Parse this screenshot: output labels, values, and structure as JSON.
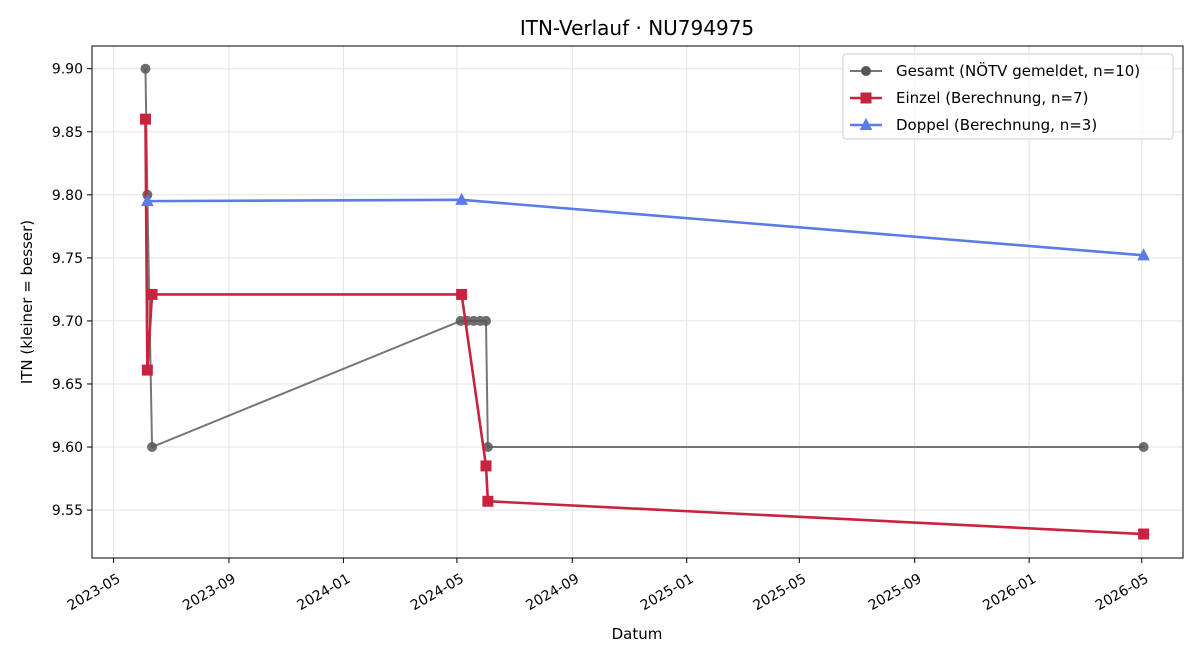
{
  "chart_data": {
    "type": "line",
    "title": "ITN-Verlauf · NU794975",
    "xlabel": "Datum",
    "ylabel": "ITN  (kleiner = besser)",
    "xlim": [
      "2023-04-08",
      "2026-06-14"
    ],
    "ylim": [
      9.512,
      9.918
    ],
    "grid": true,
    "legend_position": "top-right",
    "x_ticks": [
      "2023-05-01",
      "2023-09-01",
      "2024-01-01",
      "2024-05-01",
      "2024-09-01",
      "2025-01-01",
      "2025-05-01",
      "2025-09-01",
      "2026-01-01",
      "2026-05-01"
    ],
    "x_tick_labels": [
      "2023-05",
      "2023-09",
      "2024-01",
      "2024-05",
      "2024-09",
      "2025-01",
      "2025-05",
      "2025-09",
      "2026-01",
      "2026-05"
    ],
    "y_ticks": [
      9.55,
      9.6,
      9.65,
      9.7,
      9.75,
      9.8,
      9.85,
      9.9
    ],
    "y_tick_labels": [
      "9.55",
      "9.60",
      "9.65",
      "9.70",
      "9.75",
      "9.80",
      "9.85",
      "9.90"
    ],
    "series": [
      {
        "name": "Gesamt (NÖTV gemeldet, n=10)",
        "color": "#555555",
        "marker": "circle",
        "points": [
          {
            "x": "2023-06-04",
            "y": 9.9
          },
          {
            "x": "2023-06-06",
            "y": 9.8
          },
          {
            "x": "2023-06-11",
            "y": 9.6
          },
          {
            "x": "2024-05-05",
            "y": 9.7
          },
          {
            "x": "2024-05-12",
            "y": 9.7
          },
          {
            "x": "2024-05-19",
            "y": 9.7
          },
          {
            "x": "2024-05-26",
            "y": 9.7
          },
          {
            "x": "2024-06-01",
            "y": 9.7
          },
          {
            "x": "2024-06-03",
            "y": 9.6
          },
          {
            "x": "2026-05-03",
            "y": 9.6
          }
        ]
      },
      {
        "name": "Einzel (Berechnung, n=7)",
        "color": "#c8233f",
        "marker": "square",
        "points": [
          {
            "x": "2023-06-04",
            "y": 9.86
          },
          {
            "x": "2023-06-06",
            "y": 9.661
          },
          {
            "x": "2023-06-11",
            "y": 9.721
          },
          {
            "x": "2024-05-06",
            "y": 9.721
          },
          {
            "x": "2024-06-01",
            "y": 9.585
          },
          {
            "x": "2024-06-03",
            "y": 9.557
          },
          {
            "x": "2026-05-03",
            "y": 9.531
          }
        ]
      },
      {
        "name": "Doppel (Berechnung, n=3)",
        "color": "#5b7be9",
        "marker": "triangle",
        "points": [
          {
            "x": "2023-06-06",
            "y": 9.795
          },
          {
            "x": "2024-05-06",
            "y": 9.796
          },
          {
            "x": "2026-05-03",
            "y": 9.752
          }
        ]
      }
    ]
  }
}
